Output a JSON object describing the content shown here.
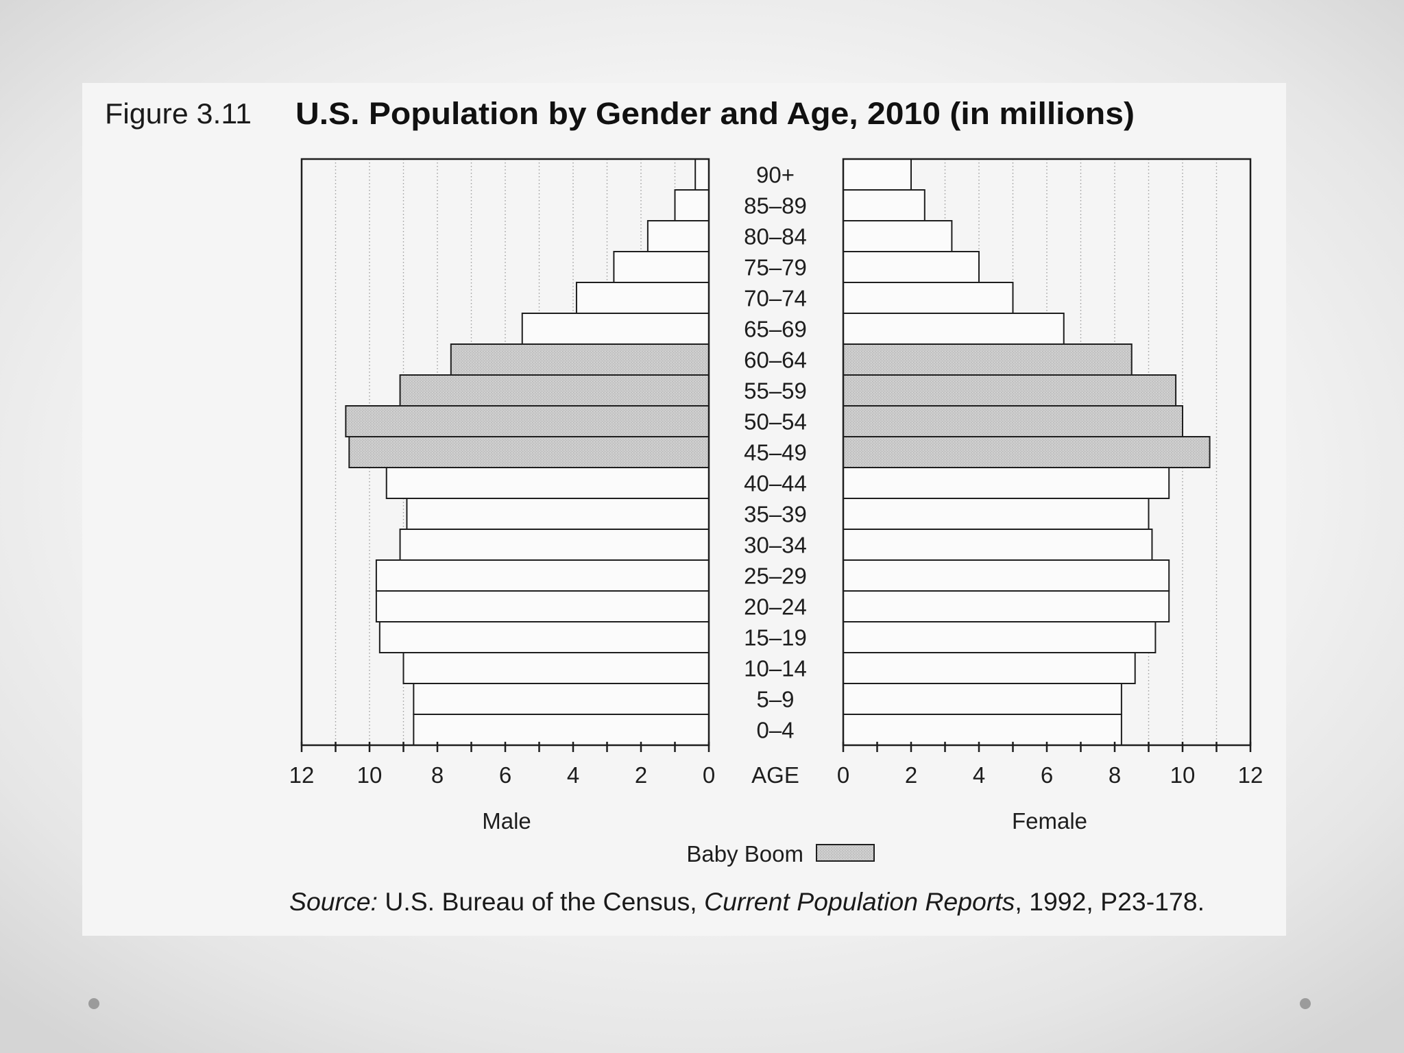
{
  "figure_label": "Figure 3.11",
  "chart_data": {
    "type": "bar",
    "orientation": "horizontal",
    "back_to_back": true,
    "title": "U.S. Population by Gender and Age, 2010 (in millions)",
    "category_axis_label": "AGE",
    "categories": [
      "90+",
      "85–89",
      "80–84",
      "75–79",
      "70–74",
      "65–69",
      "60–64",
      "55–59",
      "50–54",
      "45–49",
      "40–44",
      "35–39",
      "30–34",
      "25–29",
      "20–24",
      "15–19",
      "10–14",
      "5–9",
      "0–4"
    ],
    "series": [
      {
        "name": "Male",
        "values": [
          0.4,
          1.0,
          1.8,
          2.8,
          3.9,
          5.5,
          7.6,
          9.1,
          10.7,
          10.6,
          9.5,
          8.9,
          9.1,
          9.8,
          9.8,
          9.7,
          9.0,
          8.7,
          8.7
        ]
      },
      {
        "name": "Female",
        "values": [
          2.0,
          2.4,
          3.2,
          4.0,
          5.0,
          6.5,
          8.5,
          9.8,
          10.0,
          10.8,
          9.6,
          9.0,
          9.1,
          9.6,
          9.6,
          9.2,
          8.6,
          8.2,
          8.2
        ]
      }
    ],
    "xlim": [
      0,
      12
    ],
    "xticks": [
      0,
      2,
      4,
      6,
      8,
      10,
      12
    ],
    "grid": true,
    "highlight": {
      "name": "Baby Boom",
      "categories": [
        "60–64",
        "55–59",
        "50–54",
        "45–49"
      ]
    },
    "legend": "bottom-center",
    "colors": {
      "bar_fill": "#fbfbfb",
      "baby_boom_fill": "#cbcbcb",
      "bar_stroke": "#1e1e1e",
      "gridline": "#9c9c9c"
    }
  },
  "source": {
    "label": "Source:",
    "agency": "U.S. Bureau of the Census,",
    "publication": "Current Population Reports",
    "details": ", 1992, P23-178."
  },
  "slide": {
    "panel_color": "#f5f5f5",
    "bullet_color": "#9b9b9b"
  }
}
